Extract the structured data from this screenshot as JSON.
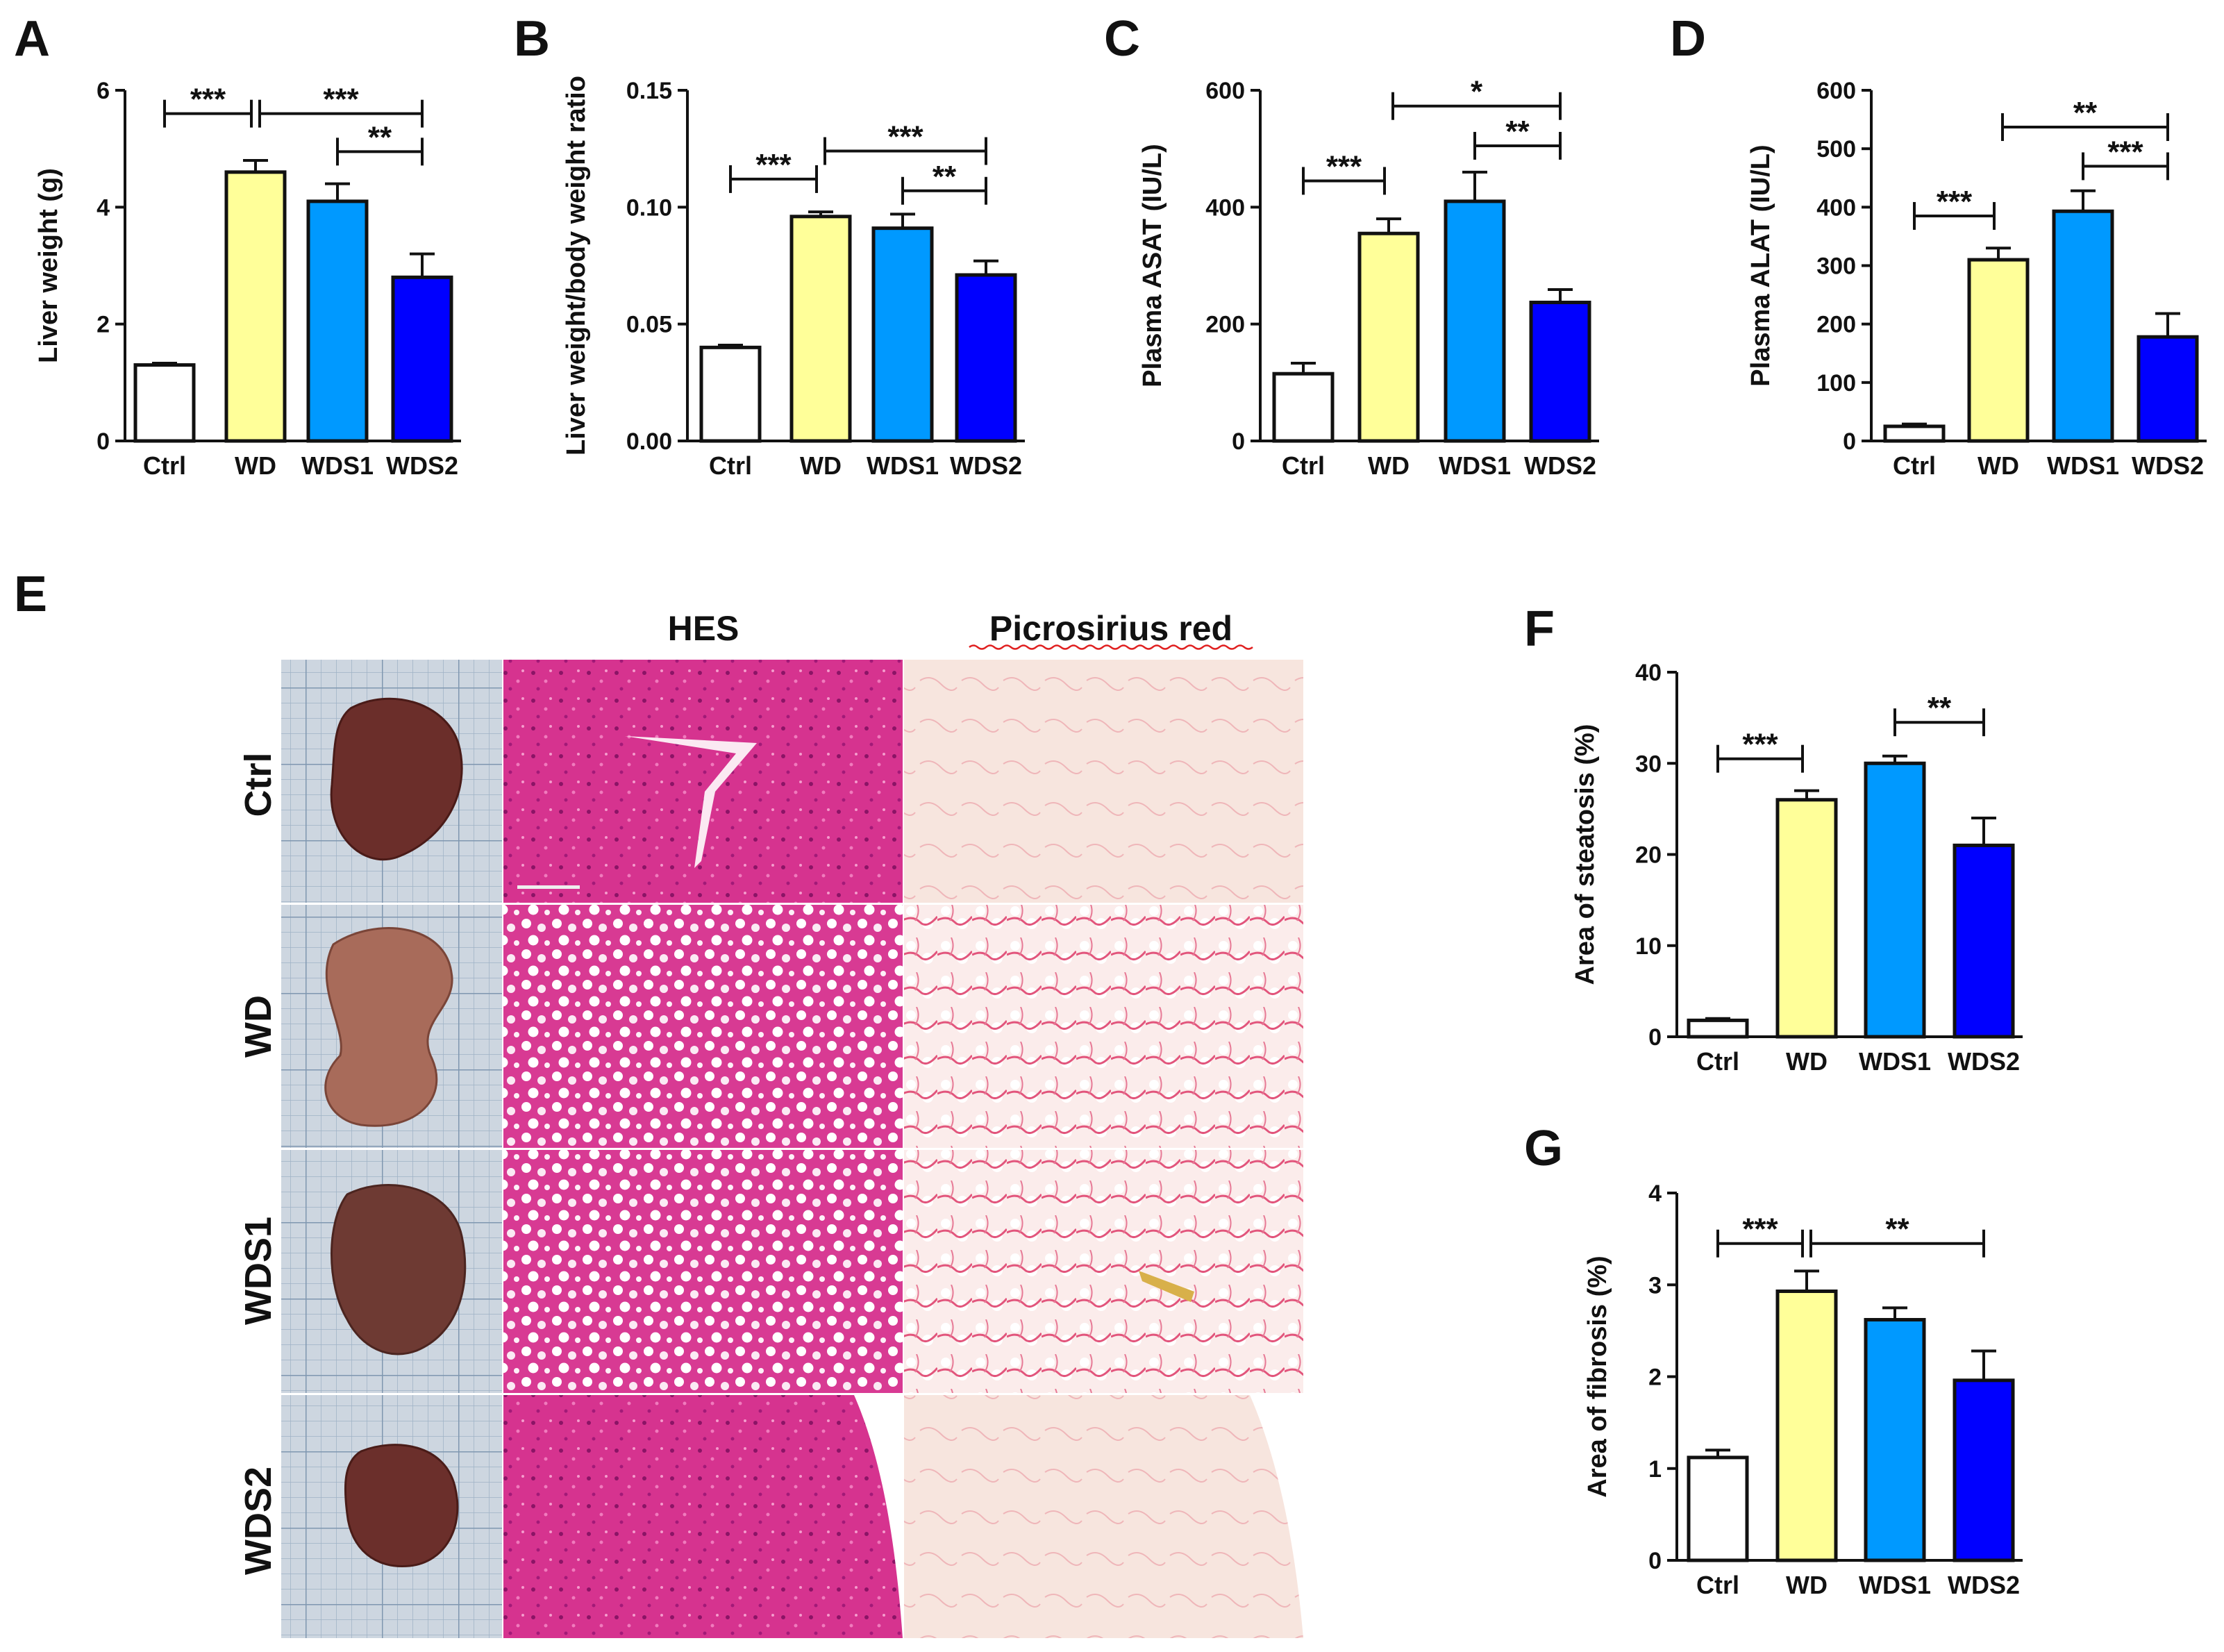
{
  "colors": {
    "Ctrl": "#ffffff",
    "WD": "#ffff99",
    "WDS1": "#0099ff",
    "WDS2": "#0000ff"
  },
  "chart_data": [
    {
      "id": "A",
      "type": "bar",
      "panel_label": "A",
      "categories": [
        "Ctrl",
        "WD",
        "WDS1",
        "WDS2"
      ],
      "values": [
        1.3,
        4.6,
        4.1,
        2.8
      ],
      "errors": [
        0.03,
        0.2,
        0.3,
        0.4
      ],
      "ylabel": "Liver weight (g)",
      "ylim": [
        0,
        6
      ],
      "ticks": [
        "0",
        "2",
        "4",
        "6"
      ],
      "tick_values": [
        0,
        2,
        4,
        6
      ],
      "significance": [
        {
          "from": 0,
          "to": 1,
          "label": "***",
          "level": 5.6
        },
        {
          "from": 1,
          "to": 3,
          "label": "***",
          "level": 5.6
        },
        {
          "from": 2,
          "to": 3,
          "label": "**",
          "level": 4.95
        }
      ]
    },
    {
      "id": "B",
      "type": "bar",
      "panel_label": "B",
      "categories": [
        "Ctrl",
        "WD",
        "WDS1",
        "WDS2"
      ],
      "values": [
        0.04,
        0.096,
        0.091,
        0.071
      ],
      "errors": [
        0.001,
        0.002,
        0.006,
        0.006
      ],
      "ylabel": "Liver weight/body weight ratio",
      "ylim": [
        0,
        0.15
      ],
      "ticks": [
        "0.00",
        "0.05",
        "0.10",
        "0.15"
      ],
      "tick_values": [
        0,
        0.05,
        0.1,
        0.15
      ],
      "significance": [
        {
          "from": 0,
          "to": 1,
          "label": "***",
          "level": 0.112
        },
        {
          "from": 1,
          "to": 3,
          "label": "***",
          "level": 0.124
        },
        {
          "from": 2,
          "to": 3,
          "label": "**",
          "level": 0.107
        }
      ]
    },
    {
      "id": "C",
      "type": "bar",
      "panel_label": "C",
      "categories": [
        "Ctrl",
        "WD",
        "WDS1",
        "WDS2"
      ],
      "values": [
        115,
        355,
        410,
        237
      ],
      "errors": [
        18,
        25,
        50,
        22
      ],
      "ylabel": "Plasma ASAT (IU/L)",
      "ylim": [
        0,
        600
      ],
      "ticks": [
        "0",
        "200",
        "400",
        "600"
      ],
      "tick_values": [
        0,
        200,
        400,
        600
      ],
      "significance": [
        {
          "from": 0,
          "to": 1,
          "label": "***",
          "level": 445
        },
        {
          "from": 1,
          "to": 3,
          "label": "*",
          "level": 573
        },
        {
          "from": 2,
          "to": 3,
          "label": "**",
          "level": 505
        }
      ]
    },
    {
      "id": "D",
      "type": "bar",
      "panel_label": "D",
      "categories": [
        "Ctrl",
        "WD",
        "WDS1",
        "WDS2"
      ],
      "values": [
        25,
        310,
        393,
        178
      ],
      "errors": [
        4,
        20,
        35,
        40
      ],
      "ylabel": "Plasma ALAT (IU/L)",
      "ylim": [
        0,
        600
      ],
      "ticks": [
        "0",
        "100",
        "200",
        "300",
        "400",
        "500",
        "600"
      ],
      "tick_values": [
        0,
        100,
        200,
        300,
        400,
        500,
        600
      ],
      "significance": [
        {
          "from": 0,
          "to": 1,
          "label": "***",
          "level": 385
        },
        {
          "from": 1,
          "to": 3,
          "label": "**",
          "level": 537
        },
        {
          "from": 2,
          "to": 3,
          "label": "***",
          "level": 470
        }
      ]
    },
    {
      "id": "F",
      "type": "bar",
      "panel_label": "F",
      "categories": [
        "Ctrl",
        "WD",
        "WDS1",
        "WDS2"
      ],
      "values": [
        1.8,
        26,
        30,
        21
      ],
      "errors": [
        0.2,
        1.0,
        0.8,
        3.0
      ],
      "ylabel": "Area of steatosis (%)",
      "ylim": [
        0,
        40
      ],
      "ticks": [
        "0",
        "10",
        "20",
        "30",
        "40"
      ],
      "tick_values": [
        0,
        10,
        20,
        30,
        40
      ],
      "significance": [
        {
          "from": 0,
          "to": 1,
          "label": "***",
          "level": 30.5
        },
        {
          "from": 2,
          "to": 3,
          "label": "**",
          "level": 34.5
        }
      ]
    },
    {
      "id": "G",
      "type": "bar",
      "panel_label": "G",
      "categories": [
        "Ctrl",
        "WD",
        "WDS1",
        "WDS2"
      ],
      "values": [
        1.12,
        2.93,
        2.62,
        1.96
      ],
      "errors": [
        0.08,
        0.22,
        0.13,
        0.32
      ],
      "ylabel": "Area of fibrosis (%)",
      "ylim": [
        0,
        4
      ],
      "ticks": [
        "0",
        "1",
        "2",
        "3",
        "4"
      ],
      "tick_values": [
        0,
        1,
        2,
        3,
        4
      ],
      "significance": [
        {
          "from": 0,
          "to": 1,
          "label": "***",
          "level": 3.45
        },
        {
          "from": 1,
          "to": 3,
          "label": "**",
          "level": 3.45
        }
      ]
    }
  ],
  "histology": {
    "panel_label": "E",
    "columns": [
      "HES",
      "Picrosirius red"
    ],
    "rows": [
      "Ctrl",
      "WD",
      "WDS1",
      "WDS2"
    ]
  }
}
